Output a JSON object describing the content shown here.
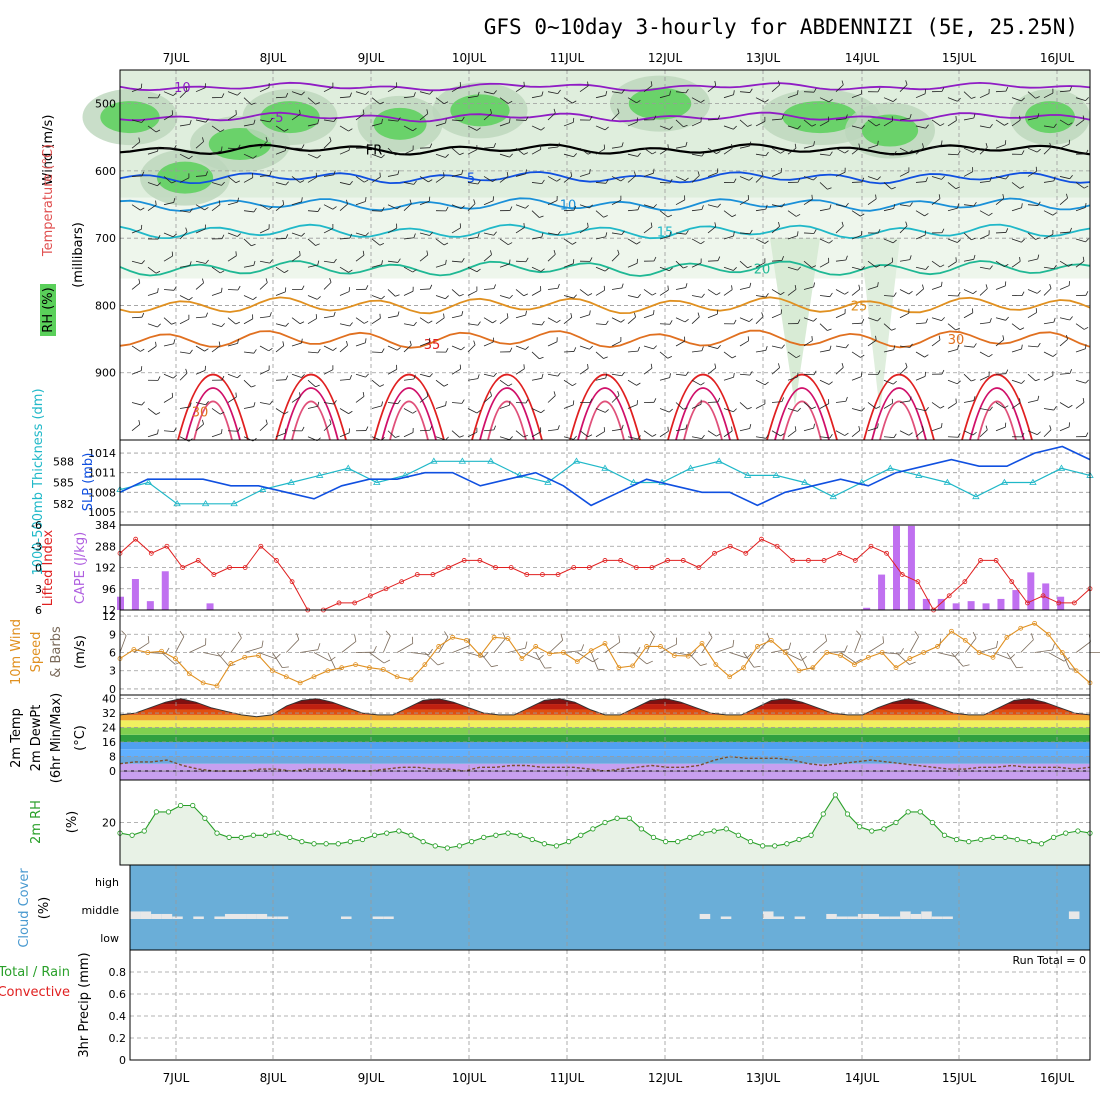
{
  "title": "GFS 0~10day 3-hourly for ABDENNIZI (5E, 25.25N)",
  "dates": [
    "7JUL",
    "8JUL",
    "9JUL",
    "10JUL",
    "11JUL",
    "12JUL",
    "13JUL",
    "14JUL",
    "15JUL",
    "16JUL"
  ],
  "colors": {
    "purple": "#8f1cc4",
    "blue": "#1050e0",
    "cyan": "#20b8c8",
    "teal": "#1fb894",
    "orange": "#e09020",
    "red": "#e02020",
    "magenta": "#d0106a",
    "green": "#2aa02a",
    "rhfill": "#5ad05a",
    "cloud": "#6aaed8"
  },
  "chart_data": [
    {
      "type": "heatmap",
      "panel": "upper-air cross section",
      "ylabels": [
        "Wind (m/s)",
        "Temperature (°C)",
        "RH (%)",
        "(millibars)"
      ],
      "yticks": [
        500,
        600,
        700,
        800,
        900
      ],
      "ylim": [
        1000,
        450
      ],
      "temperature_labels": [
        "-10",
        "-5",
        "FR",
        "5",
        "10",
        "15",
        "20",
        "25",
        "30",
        "35"
      ],
      "isotherms": [
        {
          "label": "-10",
          "p": 475
        },
        {
          "label": "-5",
          "p": 520
        },
        {
          "label": "FR",
          "p": 568
        },
        {
          "label": "5",
          "p": 610
        },
        {
          "label": "10",
          "p": 650
        },
        {
          "label": "15",
          "p": 690
        },
        {
          "label": "20",
          "p": 745
        },
        {
          "label": "25",
          "p": 800
        },
        {
          "label": "30",
          "p": 850
        }
      ],
      "rh_contour_labels": [
        "30",
        "30",
        "30",
        "30",
        "30"
      ]
    },
    {
      "type": "line",
      "panel": "thickness-slp",
      "ylabel_left": "1000-500mb Thickness (dm)",
      "ylabel_right": "SLP (mb)",
      "thickness_ticks": [
        582,
        585,
        588
      ],
      "slp_ticks": [
        1005,
        1008,
        1011,
        1014
      ],
      "series": [
        {
          "name": "1000-500mb Thickness",
          "values": [
            584,
            585,
            582,
            582,
            582,
            584,
            585,
            586,
            587,
            585,
            586,
            588,
            588,
            588,
            586,
            585,
            588,
            587,
            585,
            585,
            587,
            588,
            586,
            586,
            585,
            583,
            585,
            587,
            586,
            585,
            583,
            585,
            585,
            587,
            586
          ]
        },
        {
          "name": "SLP",
          "values": [
            1008,
            1010,
            1010,
            1010,
            1009,
            1009,
            1008,
            1007,
            1009,
            1010,
            1010,
            1011,
            1011,
            1009,
            1010,
            1011,
            1009,
            1006,
            1008,
            1010,
            1009,
            1008,
            1008,
            1006,
            1008,
            1009,
            1010,
            1009,
            1011,
            1012,
            1013,
            1012,
            1012,
            1014,
            1015,
            1013
          ]
        }
      ]
    },
    {
      "type": "bar",
      "panel": "cape-li",
      "ylabel_left": "Lifted Index",
      "ylabel_right": "CAPE (J/kg)",
      "li_ticks": [
        "-6",
        "-3",
        "0",
        "3",
        "6"
      ],
      "cape_ticks": [
        12,
        96,
        192,
        288,
        384
      ],
      "series": [
        {
          "name": "Lifted Index",
          "values": [
            -2,
            -4,
            -2,
            -3,
            0,
            -1,
            1,
            0,
            0,
            -3,
            -1,
            2,
            6,
            6,
            5,
            5,
            4,
            3,
            2,
            1,
            1,
            0,
            -1,
            -1,
            0,
            0,
            1,
            1,
            1,
            0,
            0,
            -1,
            -1,
            0,
            0,
            -1,
            -1,
            0,
            -2,
            -3,
            -2,
            -4,
            -3,
            -1,
            -1,
            -1,
            -2,
            -1,
            -3,
            -2,
            1,
            2,
            6,
            4,
            2,
            -1,
            -1,
            2,
            5,
            4,
            5,
            5,
            3
          ]
        },
        {
          "name": "CAPE",
          "values": [
            60,
            140,
            40,
            175,
            0,
            0,
            30,
            0,
            0,
            0,
            0,
            0,
            0,
            0,
            0,
            0,
            0,
            0,
            0,
            0,
            0,
            0,
            0,
            0,
            0,
            0,
            0,
            0,
            0,
            0,
            0,
            0,
            0,
            0,
            0,
            0,
            0,
            0,
            0,
            0,
            0,
            0,
            0,
            0,
            0,
            0,
            0,
            0,
            0,
            0,
            10,
            160,
            380,
            380,
            50,
            50,
            30,
            40,
            30,
            50,
            90,
            170,
            120,
            60,
            0,
            0
          ]
        }
      ]
    },
    {
      "type": "line",
      "panel": "wind-10m",
      "ylabel": "10m Wind Speed & Barbs (m/s)",
      "yticks": [
        0,
        3,
        6,
        9,
        12
      ],
      "series": [
        {
          "name": "Wind Speed",
          "values": [
            5,
            6.5,
            6,
            6.2,
            5,
            2.5,
            1,
            0.5,
            4.2,
            5.2,
            5.5,
            3,
            2,
            1,
            2,
            3,
            3.5,
            4,
            3.5,
            3.2,
            2,
            1.5,
            4,
            7,
            8.5,
            8,
            5.5,
            8.5,
            8.3,
            5,
            7,
            5.8,
            6,
            4.5,
            6.3,
            7.5,
            3.5,
            3.8,
            7,
            7,
            5.5,
            5.4,
            7.5,
            4,
            2,
            3.5,
            7,
            8,
            6,
            3,
            3.5,
            6,
            5.5,
            4,
            5.2,
            6,
            3.5,
            5,
            6,
            7,
            9.5,
            8,
            6,
            5.2,
            8.5,
            10,
            10.8,
            9,
            6,
            3,
            1
          ]
        }
      ]
    },
    {
      "type": "area",
      "panel": "temp-dew",
      "ylabel": "2m Temp 2m DewPt (6hr Min/Max) (°C)",
      "yticks": [
        0,
        8,
        16,
        24,
        32,
        40
      ],
      "series": [
        {
          "name": "2m Temp",
          "values": [
            31,
            32,
            35,
            38,
            40,
            38,
            35,
            33,
            31,
            30,
            31,
            36,
            39,
            40,
            38,
            35,
            32,
            31,
            31,
            35,
            39,
            40,
            38,
            35,
            32,
            31,
            31,
            35,
            39,
            40,
            38,
            34,
            31,
            31,
            35,
            39,
            40,
            38,
            35,
            32,
            31,
            31,
            35,
            39,
            40,
            38,
            35,
            32,
            31,
            31,
            35,
            38,
            40,
            38,
            35,
            32,
            31,
            31,
            35,
            39,
            40,
            38,
            35,
            32,
            31
          ]
        },
        {
          "name": "2m DewPt",
          "values": [
            4,
            5,
            5,
            6,
            3,
            1,
            0,
            0,
            0,
            1,
            1,
            0,
            1,
            1,
            1,
            0,
            0,
            1,
            2,
            2,
            1,
            1,
            0,
            2,
            2,
            3,
            3,
            2,
            2,
            2,
            1,
            0,
            1,
            2,
            3,
            2,
            2,
            3,
            6,
            8,
            7,
            7,
            7,
            6,
            4,
            3,
            4,
            5,
            6,
            5,
            4,
            3,
            2,
            1,
            1,
            2,
            2,
            3,
            2,
            2,
            2,
            1,
            2
          ]
        }
      ]
    },
    {
      "type": "area",
      "panel": "rh-2m",
      "ylabel": "2m RH (%)",
      "yticks": [
        20
      ],
      "series": [
        {
          "name": "2m RH",
          "values": [
            15,
            14,
            16,
            25,
            25,
            28,
            28,
            22,
            15,
            13,
            13,
            14,
            14,
            15,
            13,
            11,
            10,
            10,
            10,
            11,
            12,
            14,
            15,
            16,
            14,
            11,
            9,
            8,
            9,
            11,
            13,
            14,
            15,
            14,
            12,
            10,
            9,
            11,
            14,
            17,
            20,
            22,
            22,
            17,
            13,
            11,
            11,
            13,
            15,
            16,
            17,
            14,
            11,
            9,
            9,
            10,
            12,
            14,
            24,
            33,
            24,
            18,
            16,
            17,
            20,
            25,
            25,
            20,
            14,
            12,
            11,
            12,
            13,
            13,
            12,
            11,
            10,
            13,
            15,
            16,
            15
          ]
        }
      ]
    },
    {
      "type": "bar",
      "panel": "cloud-cover",
      "ylabel": "Cloud Cover (%)",
      "yticklabels": [
        "high",
        "middle",
        "low"
      ],
      "series": [
        {
          "name": "middle",
          "values": [
            30,
            30,
            20,
            20,
            10,
            0,
            10,
            0,
            10,
            20,
            20,
            20,
            20,
            10,
            10,
            0,
            0,
            0,
            0,
            0,
            10,
            0,
            0,
            10,
            10,
            0,
            0,
            0,
            0,
            0,
            0,
            0,
            0,
            0,
            0,
            0,
            0,
            0,
            0,
            0,
            0,
            0,
            0,
            0,
            0,
            0,
            0,
            0,
            0,
            0,
            0,
            0,
            0,
            0,
            20,
            0,
            10,
            0,
            0,
            0,
            30,
            10,
            0,
            10,
            0,
            0,
            20,
            10,
            10,
            20,
            20,
            10,
            10,
            30,
            20,
            30,
            10,
            10,
            0,
            0,
            0,
            0,
            0,
            0,
            0,
            0,
            0,
            0,
            0,
            30,
            0
          ]
        }
      ]
    },
    {
      "type": "line",
      "panel": "precip",
      "ylabel": "3hr Precip (mm)",
      "legend": [
        "Total / Rain",
        "Convective"
      ],
      "yticks": [
        0,
        0.2,
        0.4,
        0.6,
        0.8
      ],
      "ylim": [
        0,
        1
      ],
      "annotation": "Run Total = 0",
      "series": []
    }
  ]
}
